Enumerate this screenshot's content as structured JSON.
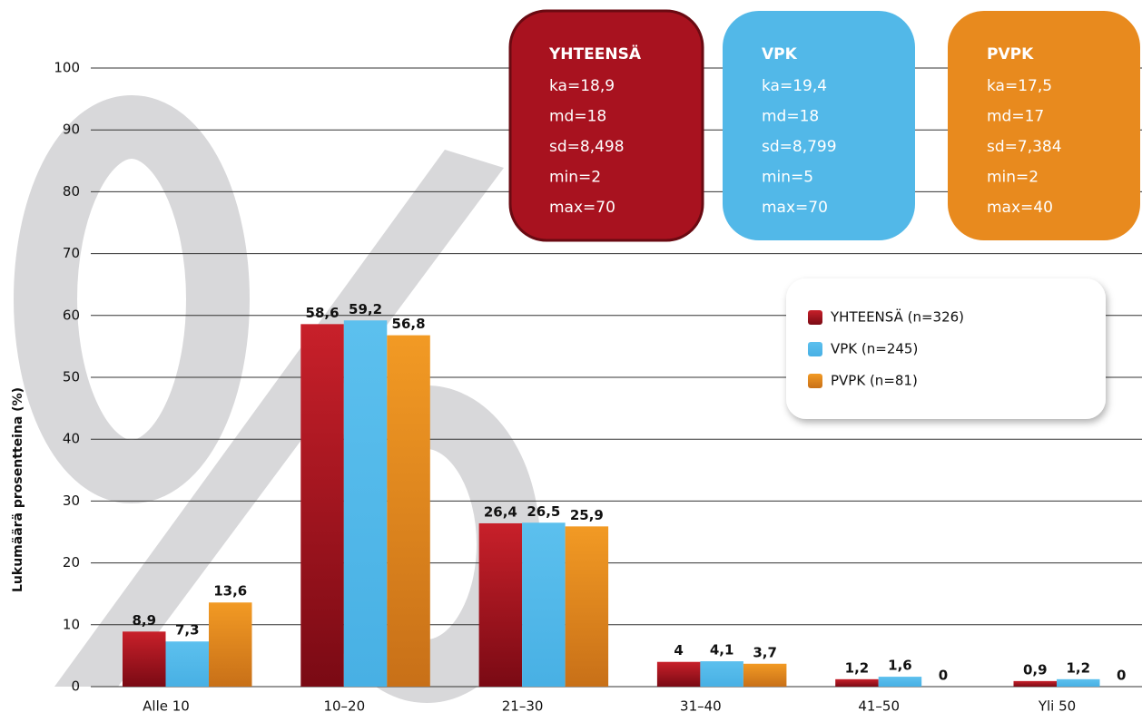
{
  "chart_data": {
    "type": "bar",
    "y_label": "Lukumäärä prosentteina (%)",
    "categories": [
      "Alle 10",
      "10–20",
      "21–30",
      "31–40",
      "41–50",
      "Yli 50"
    ],
    "series": [
      {
        "name": "YHTEENSÄ (n=326)",
        "color": "#a8121f",
        "values": [
          8.9,
          58.6,
          26.4,
          4,
          1.2,
          0.9
        ],
        "value_labels": [
          "8,9",
          "58,6",
          "26,4",
          "4",
          "1,2",
          "0,9"
        ]
      },
      {
        "name": "VPK (n=245)",
        "color": "#52b8e8",
        "values": [
          7.3,
          59.2,
          26.5,
          4.1,
          1.6,
          1.2
        ],
        "value_labels": [
          "7,3",
          "59,2",
          "26,5",
          "4,1",
          "1,6",
          "1,2"
        ]
      },
      {
        "name": "PVPK (n=81)",
        "color": "#e88a1e",
        "values": [
          13.6,
          56.8,
          25.9,
          3.7,
          0,
          0
        ],
        "value_labels": [
          "13,6",
          "56,8",
          "25,9",
          "3,7",
          "0",
          "0"
        ]
      }
    ],
    "ylim": [
      0,
      100
    ],
    "yticks": [
      0,
      10,
      20,
      30,
      40,
      50,
      60,
      70,
      80,
      90,
      100
    ],
    "grid": true,
    "stat_boxes": [
      {
        "title": "YHTEENSÄ",
        "color": "#a8121f",
        "lines": [
          "ka=18,9",
          "md=18",
          "sd=8,498",
          "min=2",
          "max=70"
        ]
      },
      {
        "title": "VPK",
        "color": "#52b8e8",
        "lines": [
          "ka=19,4",
          "md=18",
          "sd=8,799",
          "min=5",
          "max=70"
        ]
      },
      {
        "title": "PVPK",
        "color": "#e88a1e",
        "lines": [
          "ka=17,5",
          "md=17",
          "sd=7,384",
          "min=2",
          "max=40"
        ]
      }
    ]
  }
}
